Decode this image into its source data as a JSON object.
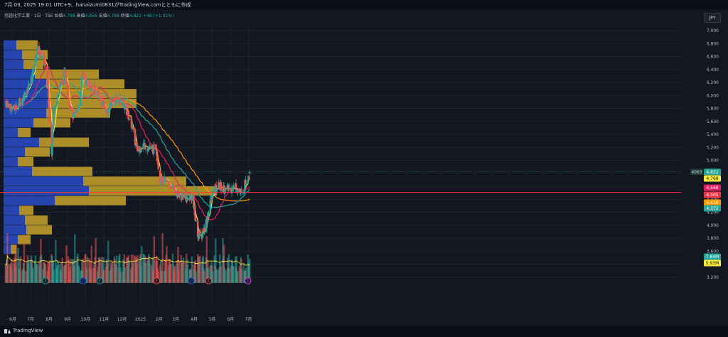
{
  "header": {
    "timestamp_line": "7月 03, 2025 19:01 UTC+9、hanaizumi0831がTradingView.comとともに作成",
    "symbol": "信越化学工業 · 1日 · TSE",
    "open_label": "始値",
    "open": "4,798",
    "high_label": "高値",
    "high": "4,856",
    "low_label": "安値",
    "low": "4,768",
    "close_label": "終値",
    "close": "4,822",
    "change": "+48 (+1.01%)",
    "currency": "JPY"
  },
  "footer": {
    "brand": "TradingView"
  },
  "colors": {
    "background": "#131722",
    "up": "#26a69a",
    "down": "#ef5350",
    "ma_fast": "#ffeb3b",
    "ma_mid": "#e91e63",
    "ma_slow": "#26a69a",
    "ma_long": "#ff9800",
    "vp_up": "#2a4cc8",
    "vp_down": "#c8a228",
    "poc": "#f23645"
  },
  "chart_data": {
    "type": "candlestick",
    "price_axis": {
      "ticks": [
        "7,000",
        "6,800",
        "6,600",
        "6,400",
        "6,200",
        "6,000",
        "5,800",
        "5,600",
        "5,400",
        "5,200",
        "5,000",
        "4,800",
        "4,600",
        "4,400",
        "4,200",
        "4,000",
        "3,800",
        "3,600",
        "3,400",
        "3,200"
      ],
      "range": [
        3100,
        7100
      ]
    },
    "time_axis": {
      "labels": [
        "6月",
        "7月",
        "8月",
        "9月",
        "10月",
        "11月",
        "12月",
        "2025",
        "2月",
        "3月",
        "4月",
        "5月",
        "6月",
        "7月"
      ]
    },
    "ohlc_anchors": [
      [
        "2024-05-20",
        5900
      ],
      [
        "2024-06-03",
        5780
      ],
      [
        "2024-06-17",
        5950
      ],
      [
        "2024-07-01",
        6200
      ],
      [
        "2024-07-08",
        6500
      ],
      [
        "2024-07-12",
        6700
      ],
      [
        "2024-07-22",
        6600
      ],
      [
        "2024-07-29",
        6300
      ],
      [
        "2024-08-05",
        5150
      ],
      [
        "2024-08-09",
        5800
      ],
      [
        "2024-08-20",
        6150
      ],
      [
        "2024-08-28",
        6350
      ],
      [
        "2024-09-04",
        5900
      ],
      [
        "2024-09-11",
        5650
      ],
      [
        "2024-09-18",
        5750
      ],
      [
        "2024-09-26",
        6300
      ],
      [
        "2024-10-07",
        6150
      ],
      [
        "2024-10-21",
        6050
      ],
      [
        "2024-11-05",
        5750
      ],
      [
        "2024-11-18",
        5950
      ],
      [
        "2024-12-02",
        5900
      ],
      [
        "2024-12-16",
        5600
      ],
      [
        "2024-12-26",
        5150
      ],
      [
        "2025-01-06",
        5250
      ],
      [
        "2025-01-20",
        5150
      ],
      [
        "2025-01-27",
        5200
      ],
      [
        "2025-02-03",
        4700
      ],
      [
        "2025-02-17",
        4650
      ],
      [
        "2025-03-03",
        4500
      ],
      [
        "2025-03-17",
        4400
      ],
      [
        "2025-03-28",
        4450
      ],
      [
        "2025-04-07",
        3850
      ],
      [
        "2025-04-14",
        3850
      ],
      [
        "2025-04-21",
        4050
      ],
      [
        "2025-05-02",
        4500
      ],
      [
        "2025-05-12",
        4600
      ],
      [
        "2025-05-26",
        4550
      ],
      [
        "2025-06-09",
        4600
      ],
      [
        "2025-06-20",
        4460
      ],
      [
        "2025-06-27",
        4700
      ],
      [
        "2025-07-03",
        4822
      ]
    ],
    "last_candle": {
      "open": 4798,
      "high": 4856,
      "low": 4768,
      "close": 4822
    },
    "moving_averages": [
      {
        "value": 4768,
        "label": "4,768",
        "color": "#ffeb3b"
      },
      {
        "value": 4568,
        "label": "4,568",
        "color": "#e91e63"
      },
      {
        "value": 4428,
        "label": "4,428",
        "color": "#ff9800"
      },
      {
        "value": 4372,
        "label": "4,372",
        "color": "#26a69a"
      }
    ],
    "price_labels": [
      {
        "value": 4822,
        "label": "4,822",
        "color": "#26a69a"
      },
      {
        "value": 4505,
        "label": "4,505",
        "color": "#f23645"
      }
    ],
    "countdown_tag": "4063",
    "volume": {
      "last": "7.84M",
      "last_color": "#26a69a",
      "average": "5.93M",
      "average_color": "#ffeb3b"
    },
    "events": [
      {
        "date": "2024-07-26",
        "glyph": "E",
        "color": "#26a69a"
      },
      {
        "date": "2024-09-27",
        "glyph": "D",
        "color": "#2962ff"
      },
      {
        "date": "2024-10-25",
        "glyph": "E",
        "color": "#26a69a"
      },
      {
        "date": "2025-01-28",
        "glyph": "E",
        "color": "#ef5350"
      },
      {
        "date": "2025-03-27",
        "glyph": "D",
        "color": "#2962ff"
      },
      {
        "date": "2025-04-25",
        "glyph": "E",
        "color": "#ef5350"
      },
      {
        "date": "2025-06-30",
        "glyph": "S",
        "color": "#e040fb"
      }
    ],
    "volume_profile_bins": [
      {
        "price": 6775,
        "up": 18,
        "down": 30
      },
      {
        "price": 6625,
        "up": 26,
        "down": 36
      },
      {
        "price": 6475,
        "up": 28,
        "down": 28
      },
      {
        "price": 6325,
        "up": 44,
        "down": 90
      },
      {
        "price": 6175,
        "up": 60,
        "down": 110
      },
      {
        "price": 6025,
        "up": 65,
        "down": 122
      },
      {
        "price": 5875,
        "up": 62,
        "down": 125
      },
      {
        "price": 5725,
        "up": 60,
        "down": 90
      },
      {
        "price": 5575,
        "up": 42,
        "down": 52
      },
      {
        "price": 5425,
        "up": 20,
        "down": 18
      },
      {
        "price": 5275,
        "up": 50,
        "down": 70
      },
      {
        "price": 5125,
        "up": 30,
        "down": 35
      },
      {
        "price": 4975,
        "up": 20,
        "down": 22
      },
      {
        "price": 4825,
        "up": 40,
        "down": 85
      },
      {
        "price": 4675,
        "up": 112,
        "down": 145
      },
      {
        "price": 4525,
        "up": 120,
        "down": 180
      },
      {
        "price": 4375,
        "up": 72,
        "down": 100
      },
      {
        "price": 4225,
        "up": 22,
        "down": 20
      },
      {
        "price": 4075,
        "up": 30,
        "down": 32
      },
      {
        "price": 3925,
        "up": 32,
        "down": 36
      },
      {
        "price": 3775,
        "up": 20,
        "down": 18
      },
      {
        "price": 3625,
        "up": 10,
        "down": 8
      }
    ]
  }
}
